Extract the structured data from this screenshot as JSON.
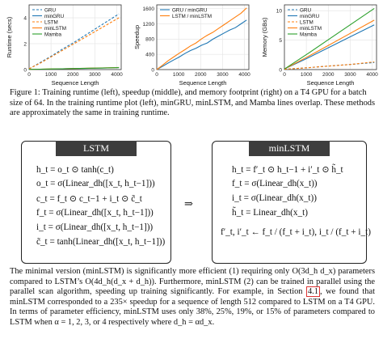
{
  "chart_data": [
    {
      "type": "line",
      "xlabel": "Sequence Length",
      "ylabel": "Runtime (secs)",
      "xlim": [
        0,
        4200
      ],
      "ylim": [
        0,
        5
      ],
      "x_ticks": [
        "0",
        "1000",
        "2000",
        "3000",
        "4000"
      ],
      "y_ticks": [
        "0",
        "2",
        "4"
      ],
      "legend": "top-left",
      "grid": true,
      "x": [
        0,
        512,
        1024,
        1536,
        2048,
        2560,
        3072,
        3584,
        4096
      ],
      "series": [
        {
          "name": "GRU",
          "color": "#1f77b4",
          "dash": true,
          "values": [
            0.05,
            0.55,
            1.05,
            1.6,
            2.1,
            2.65,
            3.2,
            3.75,
            4.3
          ]
        },
        {
          "name": "minGRU",
          "color": "#1f77b4",
          "dash": false,
          "values": [
            0.02,
            0.03,
            0.04,
            0.06,
            0.08,
            0.09,
            0.11,
            0.13,
            0.15
          ]
        },
        {
          "name": "LSTM",
          "color": "#ff7f0e",
          "dash": true,
          "values": [
            0.06,
            0.5,
            1.0,
            1.5,
            2.0,
            2.5,
            3.0,
            3.5,
            4.0
          ]
        },
        {
          "name": "minLSTM",
          "color": "#ff7f0e",
          "dash": false,
          "values": [
            0.02,
            0.03,
            0.05,
            0.06,
            0.08,
            0.1,
            0.12,
            0.14,
            0.16
          ]
        },
        {
          "name": "Mamba",
          "color": "#2ca02c",
          "dash": false,
          "values": [
            0.02,
            0.03,
            0.05,
            0.06,
            0.08,
            0.1,
            0.11,
            0.13,
            0.15
          ]
        }
      ]
    },
    {
      "type": "line",
      "xlabel": "Sequence Length",
      "ylabel": "Speedup",
      "xlim": [
        0,
        4200
      ],
      "ylim": [
        0,
        1700
      ],
      "x_ticks": [
        "0",
        "1000",
        "2000",
        "3000",
        "4000"
      ],
      "y_ticks": [
        "0",
        "400",
        "800",
        "1200",
        "1600"
      ],
      "legend": "top-left",
      "grid": true,
      "x": [
        0,
        256,
        512,
        768,
        1024,
        1280,
        1536,
        1792,
        2048,
        2304,
        2560,
        2816,
        3072,
        3328,
        3584,
        3840,
        4096
      ],
      "series": [
        {
          "name": "GRU / minGRU",
          "color": "#1f77b4",
          "values": [
            0,
            80,
            170,
            250,
            330,
            420,
            500,
            560,
            640,
            700,
            800,
            880,
            960,
            1040,
            1100,
            1200,
            1300
          ]
        },
        {
          "name": "LSTM / minLSTM",
          "color": "#ff7f0e",
          "values": [
            0,
            110,
            230,
            330,
            430,
            520,
            620,
            700,
            810,
            900,
            980,
            1080,
            1180,
            1280,
            1380,
            1480,
            1620
          ]
        }
      ]
    },
    {
      "type": "line",
      "xlabel": "Sequence Length",
      "ylabel": "Memory (GBs)",
      "xlim": [
        0,
        4200
      ],
      "ylim": [
        0,
        11
      ],
      "x_ticks": [
        "0",
        "1000",
        "2000",
        "3000",
        "4000"
      ],
      "y_ticks": [
        "0",
        "5",
        "10"
      ],
      "legend": "top-left",
      "grid": true,
      "x": [
        0,
        1024,
        2048,
        3072,
        4096
      ],
      "series": [
        {
          "name": "GRU",
          "color": "#1f77b4",
          "dash": true,
          "values": [
            0.05,
            0.3,
            0.6,
            0.9,
            1.2
          ]
        },
        {
          "name": "minGRU",
          "color": "#1f77b4",
          "dash": false,
          "values": [
            0.1,
            1.9,
            3.8,
            5.7,
            7.6
          ]
        },
        {
          "name": "LSTM",
          "color": "#ff7f0e",
          "dash": true,
          "values": [
            0.05,
            0.3,
            0.6,
            0.9,
            1.3
          ]
        },
        {
          "name": "minLSTM",
          "color": "#ff7f0e",
          "dash": false,
          "values": [
            0.1,
            2.1,
            4.2,
            6.3,
            8.4
          ]
        },
        {
          "name": "Mamba",
          "color": "#2ca02c",
          "dash": false,
          "values": [
            0.1,
            2.6,
            5.2,
            7.8,
            10.4
          ]
        }
      ]
    }
  ],
  "caption": {
    "text": "Figure 1: Training runtime (left), speedup (middle), and memory footprint (right) on a T4 GPU for a batch size of 64. In the training runtime plot (left), minGRU, minLSTM, and Mamba lines overlap. These methods are approximately the same in training runtime."
  },
  "lstm_box": {
    "title": "LSTM",
    "eq1": "h_t = o_t ⊙ tanh(c_t)",
    "eq2": "o_t = σ(Linear_dh([x_t, h_t−1]))",
    "eq3": "c_t = f_t ⊙ c_t−1 + i_t ⊙ c̃_t",
    "eq4": "f_t = σ(Linear_dh([x_t, h_t−1]))",
    "eq5": "i_t = σ(Linear_dh([x_t, h_t−1]))",
    "eq6": "c̃_t = tanh(Linear_dh([x_t, h_t−1]))"
  },
  "arrow": "⇒",
  "minlstm_box": {
    "title": "minLSTM",
    "eq1": "h_t = f′_t ⊙ h_t−1 + i′_t ⊙ h̃_t",
    "eq2": "f_t = σ(Linear_dh(x_t))",
    "eq3": "i_t = σ(Linear_dh(x_t))",
    "eq4": "h̃_t = Linear_dh(x_t)",
    "eq5": "f′_t, i′_t ← f_t / (f_t + i_t), i_t / (f_t + i_t)"
  },
  "body": {
    "p1": "The minimal version (minLSTM) is significantly more efficient (1) requiring only O(3d_h d_x) parameters compared to LSTM’s O(4d_h(d_x + d_h)). Furthermore, minLSTM (2) can be trained in parallel using the parallel scan algorithm, speeding up training significantly. For example, in Section",
    "section_ref": "4.1",
    "p2": ", we found that minLSTM corresponded to a 235× speedup for a sequence of length 512 compared to LSTM on a T4 GPU. In terms of parameter efficiency, minLSTM uses only 38%, 25%, 19%, or 15% of parameters compared to LSTM when α = 1, 2, 3, or 4 respectively where d_h = αd_x."
  }
}
